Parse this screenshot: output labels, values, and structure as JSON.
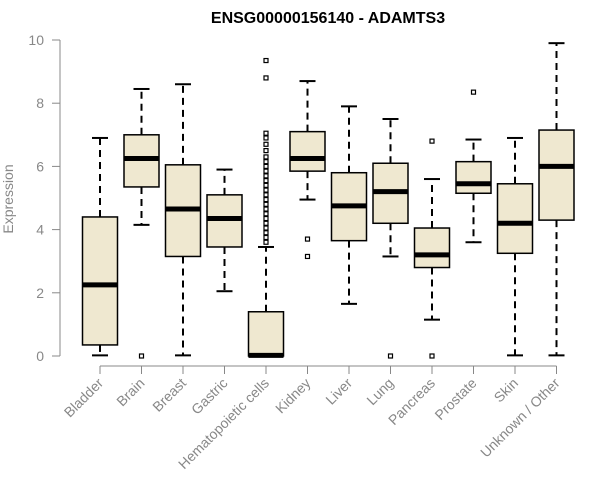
{
  "chart_data": {
    "type": "boxplot",
    "title": "ENSG00000156140 - ADAMTS3",
    "xlabel": "",
    "ylabel": "Expression",
    "ylim": [
      0,
      10
    ],
    "yticks": [
      "0",
      "2",
      "4",
      "6",
      "8",
      "10"
    ],
    "box_fill": "#efe8d0",
    "axis_color": "#888888",
    "categories": [
      "Bladder",
      "Brain",
      "Breast",
      "Gastric",
      "Hematopoietic cells",
      "Kidney",
      "Liver",
      "Lung",
      "Pancreas",
      "Prostate",
      "Skin",
      "Unknown / Other"
    ],
    "boxes": [
      {
        "name": "Bladder",
        "lower_whisker": 0.02,
        "q1": 0.35,
        "median": 2.25,
        "q3": 4.4,
        "upper_whisker": 6.9,
        "outliers": []
      },
      {
        "name": "Brain",
        "lower_whisker": 4.15,
        "q1": 5.35,
        "median": 6.25,
        "q3": 7.0,
        "upper_whisker": 8.45,
        "outliers": [
          0.0
        ]
      },
      {
        "name": "Breast",
        "lower_whisker": 0.02,
        "q1": 3.15,
        "median": 4.65,
        "q3": 6.05,
        "upper_whisker": 8.6,
        "outliers": []
      },
      {
        "name": "Gastric",
        "lower_whisker": 2.05,
        "q1": 3.45,
        "median": 4.35,
        "q3": 5.1,
        "upper_whisker": 5.9,
        "outliers": []
      },
      {
        "name": "Hematopoietic cells",
        "lower_whisker": 0.0,
        "q1": 0.0,
        "median": 0.02,
        "q3": 1.4,
        "upper_whisker": 3.45,
        "outliers": [
          3.6,
          3.75,
          3.9,
          4.05,
          4.2,
          4.35,
          4.5,
          4.65,
          4.8,
          4.95,
          5.1,
          5.25,
          5.4,
          5.55,
          5.7,
          5.85,
          6.0,
          6.15,
          6.3,
          6.5,
          6.7,
          6.9,
          7.05,
          8.8,
          9.35
        ]
      },
      {
        "name": "Kidney",
        "lower_whisker": 4.95,
        "q1": 5.85,
        "median": 6.25,
        "q3": 7.1,
        "upper_whisker": 8.7,
        "outliers": [
          3.7,
          3.15
        ]
      },
      {
        "name": "Liver",
        "lower_whisker": 1.65,
        "q1": 3.65,
        "median": 4.75,
        "q3": 5.8,
        "upper_whisker": 7.9,
        "outliers": []
      },
      {
        "name": "Lung",
        "lower_whisker": 3.15,
        "q1": 4.2,
        "median": 5.2,
        "q3": 6.1,
        "upper_whisker": 7.5,
        "outliers": [
          0.0
        ]
      },
      {
        "name": "Pancreas",
        "lower_whisker": 1.15,
        "q1": 2.8,
        "median": 3.2,
        "q3": 4.05,
        "upper_whisker": 5.6,
        "outliers": [
          6.8,
          0.0
        ]
      },
      {
        "name": "Prostate",
        "lower_whisker": 3.6,
        "q1": 5.15,
        "median": 5.45,
        "q3": 6.15,
        "upper_whisker": 6.85,
        "outliers": [
          8.35
        ]
      },
      {
        "name": "Skin",
        "lower_whisker": 0.02,
        "q1": 3.25,
        "median": 4.2,
        "q3": 5.45,
        "upper_whisker": 6.9,
        "outliers": []
      },
      {
        "name": "Unknown / Other",
        "lower_whisker": 0.02,
        "q1": 4.3,
        "median": 6.0,
        "q3": 7.15,
        "upper_whisker": 9.9,
        "outliers": []
      }
    ]
  }
}
